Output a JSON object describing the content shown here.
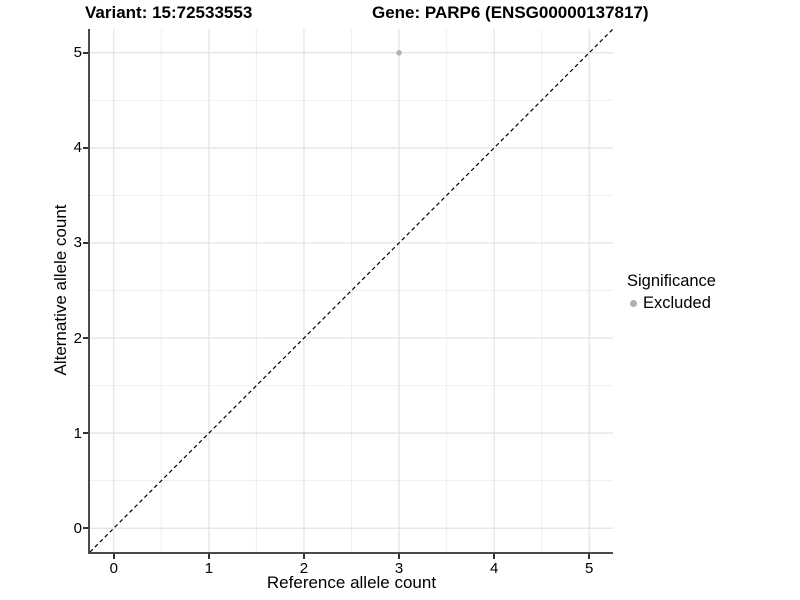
{
  "titles": {
    "variant": "Variant: 15:72533553",
    "gene": "Gene: PARP6 (ENSG00000137817)"
  },
  "legend": {
    "title": "Significance",
    "items": [
      {
        "label": "Excluded",
        "color": "#b0b0b0"
      }
    ]
  },
  "colors": {
    "background": "#ffffff",
    "grid_major": "#e2e2e2",
    "grid_minor": "#efefef",
    "axis_line": "#4a4a4a",
    "tick": "#333333",
    "text": "#000000",
    "point": "#b4b4b4",
    "reference_line": "#000000"
  },
  "chart_data": {
    "type": "scatter",
    "title": "Variant: 15:72533553   Gene: PARP6 (ENSG00000137817)",
    "xlabel": "Reference allele count",
    "ylabel": "Alternative allele count",
    "xlim": [
      -0.25,
      5.25
    ],
    "ylim": [
      -0.25,
      5.25
    ],
    "x_ticks": [
      0,
      1,
      2,
      3,
      4,
      5
    ],
    "y_ticks": [
      0,
      1,
      2,
      3,
      4,
      5
    ],
    "x_minor_ticks": [
      0.5,
      1.5,
      2.5,
      3.5,
      4.5
    ],
    "y_minor_ticks": [
      0.5,
      1.5,
      2.5,
      3.5,
      4.5
    ],
    "grid": true,
    "legend_position": "right",
    "series": [
      {
        "name": "Excluded",
        "color": "#b4b4b4",
        "points": [
          {
            "x": 3,
            "y": 5
          }
        ]
      }
    ],
    "reference_line": {
      "kind": "identity",
      "equation": "y = x",
      "style": "dashed",
      "color": "#000000",
      "span": "full-panel"
    }
  }
}
